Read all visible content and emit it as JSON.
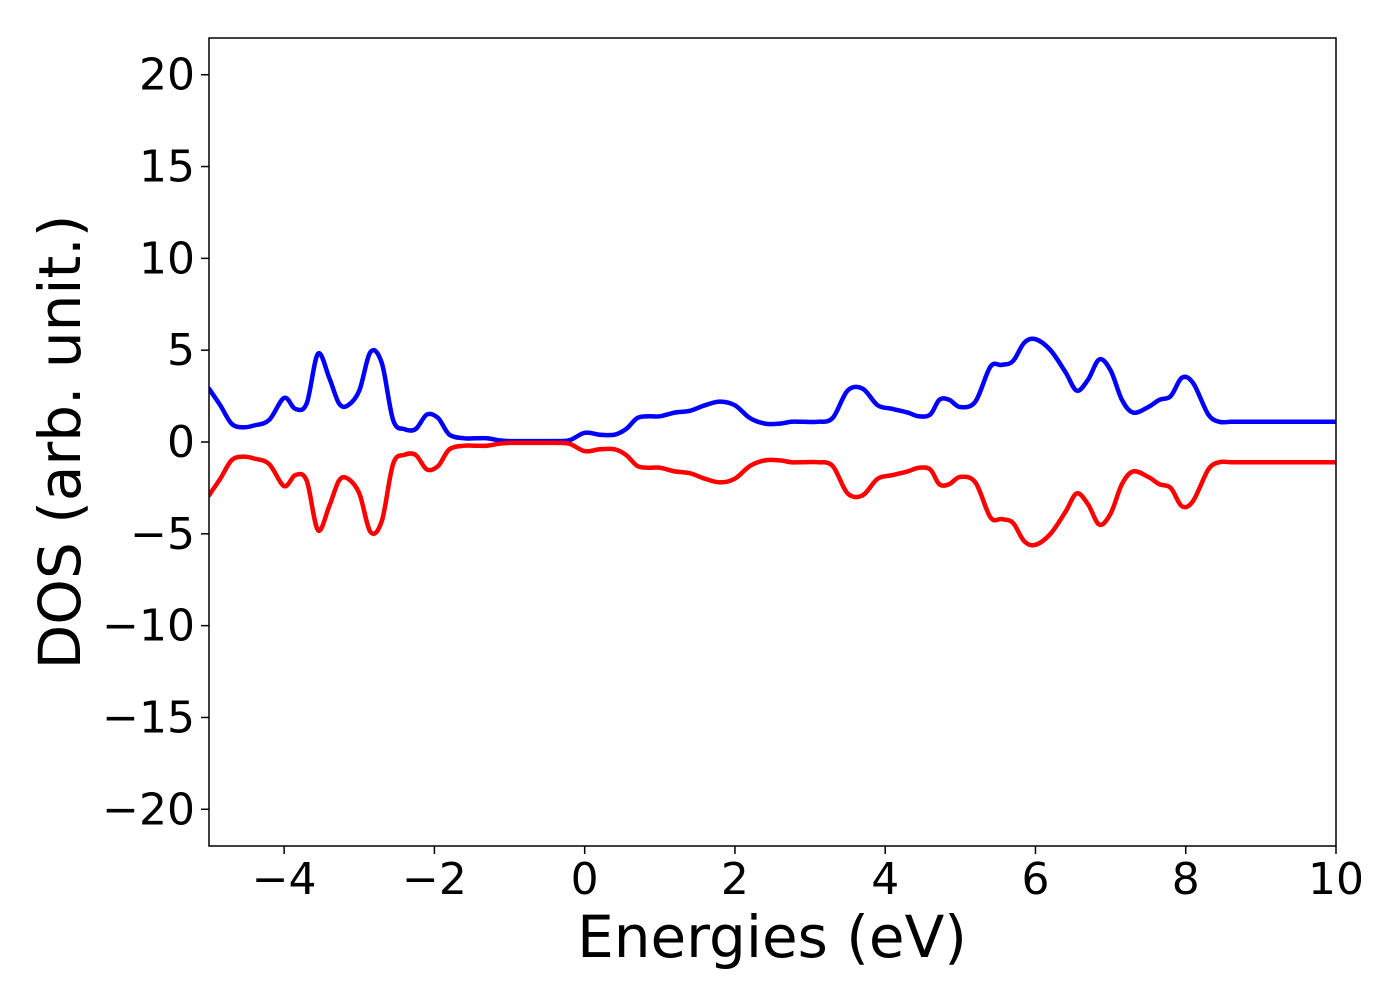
{
  "chart_data": {
    "type": "line",
    "title": "",
    "xlabel": "Energies (eV)",
    "ylabel": "DOS (arb. unit.)",
    "xlim": [
      -5,
      10
    ],
    "ylim": [
      -22,
      22
    ],
    "xticks": [
      -4,
      -2,
      0,
      2,
      4,
      6,
      8,
      10
    ],
    "yticks": [
      -20,
      -15,
      -10,
      -5,
      0,
      5,
      10,
      15,
      20
    ],
    "xtick_labels": [
      "−4",
      "−2",
      "0",
      "2",
      "4",
      "6",
      "8",
      "10"
    ],
    "ytick_labels": [
      "−20",
      "−15",
      "−10",
      "−5",
      "0",
      "5",
      "10",
      "15",
      "20"
    ],
    "grid": false,
    "legend": "none",
    "series": [
      {
        "color": "#0000ff",
        "x": [
          -5.0,
          -4.85,
          -4.7,
          -4.55,
          -4.4,
          -4.2,
          -4.0,
          -3.85,
          -3.7,
          -3.55,
          -3.4,
          -3.27,
          -3.15,
          -3.0,
          -2.85,
          -2.7,
          -2.55,
          -2.4,
          -2.25,
          -2.1,
          -1.95,
          -1.8,
          -1.6,
          -1.45,
          -1.3,
          -1.15,
          -1.0,
          -0.8,
          -0.6,
          -0.4,
          -0.2,
          0.0,
          0.2,
          0.4,
          0.55,
          0.7,
          0.85,
          1.0,
          1.2,
          1.4,
          1.6,
          1.8,
          2.0,
          2.2,
          2.4,
          2.6,
          2.75,
          2.9,
          3.1,
          3.3,
          3.5,
          3.7,
          3.9,
          4.1,
          4.3,
          4.45,
          4.6,
          4.72,
          4.85,
          5.0,
          5.2,
          5.4,
          5.55,
          5.7,
          5.85,
          6.0,
          6.2,
          6.4,
          6.55,
          6.7,
          6.85,
          7.0,
          7.15,
          7.3,
          7.5,
          7.65,
          7.8,
          7.95,
          8.1,
          8.3,
          8.45,
          8.6,
          8.75,
          8.95,
          9.15,
          9.35,
          9.58,
          9.75,
          9.9,
          10.0
        ],
        "y": [
          2.9,
          2.0,
          1.0,
          0.8,
          0.9,
          1.2,
          2.4,
          1.8,
          2.1,
          4.8,
          3.5,
          2.1,
          2.0,
          2.8,
          4.9,
          4.3,
          1.2,
          0.7,
          0.7,
          1.5,
          1.3,
          0.4,
          0.2,
          0.2,
          0.2,
          0.1,
          0.05,
          0.05,
          0.05,
          0.05,
          0.1,
          0.5,
          0.4,
          0.4,
          0.7,
          1.3,
          1.4,
          1.4,
          1.6,
          1.7,
          2.0,
          2.2,
          2.0,
          1.3,
          1.0,
          1.0,
          1.1,
          1.1,
          1.1,
          1.3,
          2.8,
          2.9,
          2.0,
          1.8,
          1.6,
          1.4,
          1.5,
          2.3,
          2.3,
          1.9,
          2.2,
          4.1,
          4.2,
          4.4,
          5.4,
          5.6,
          5.0,
          3.8,
          2.8,
          3.4,
          4.5,
          3.9,
          2.3,
          1.6,
          1.9,
          2.3,
          2.5,
          3.5,
          3.2,
          1.5,
          1.1,
          1.1,
          1.1,
          1.1,
          1.1,
          1.1,
          1.1,
          1.1,
          1.1,
          1.1
        ]
      },
      {
        "color": "#ff0000",
        "x": [
          -5.0,
          -4.85,
          -4.7,
          -4.55,
          -4.4,
          -4.2,
          -4.0,
          -3.85,
          -3.7,
          -3.55,
          -3.4,
          -3.27,
          -3.15,
          -3.0,
          -2.85,
          -2.7,
          -2.55,
          -2.4,
          -2.25,
          -2.1,
          -1.95,
          -1.8,
          -1.6,
          -1.45,
          -1.3,
          -1.15,
          -1.0,
          -0.8,
          -0.6,
          -0.4,
          -0.2,
          0.0,
          0.2,
          0.4,
          0.55,
          0.7,
          0.85,
          1.0,
          1.2,
          1.4,
          1.6,
          1.8,
          2.0,
          2.2,
          2.4,
          2.6,
          2.75,
          2.9,
          3.1,
          3.3,
          3.5,
          3.7,
          3.9,
          4.1,
          4.3,
          4.45,
          4.6,
          4.72,
          4.85,
          5.0,
          5.2,
          5.4,
          5.55,
          5.7,
          5.85,
          6.0,
          6.2,
          6.4,
          6.55,
          6.7,
          6.85,
          7.0,
          7.15,
          7.3,
          7.5,
          7.65,
          7.8,
          7.95,
          8.1,
          8.3,
          8.45,
          8.6,
          8.75,
          8.95,
          9.15,
          9.35,
          9.58,
          9.75,
          9.9,
          10.0
        ],
        "y": [
          -2.9,
          -2.0,
          -1.0,
          -0.8,
          -0.9,
          -1.2,
          -2.4,
          -1.8,
          -2.1,
          -4.8,
          -3.5,
          -2.1,
          -2.0,
          -2.8,
          -4.9,
          -4.3,
          -1.2,
          -0.7,
          -0.7,
          -1.5,
          -1.3,
          -0.4,
          -0.2,
          -0.2,
          -0.2,
          -0.1,
          -0.05,
          -0.05,
          -0.05,
          -0.05,
          -0.1,
          -0.5,
          -0.4,
          -0.4,
          -0.7,
          -1.3,
          -1.4,
          -1.4,
          -1.6,
          -1.7,
          -2.0,
          -2.2,
          -2.0,
          -1.3,
          -1.0,
          -1.0,
          -1.1,
          -1.1,
          -1.1,
          -1.3,
          -2.8,
          -2.9,
          -2.0,
          -1.8,
          -1.6,
          -1.4,
          -1.5,
          -2.3,
          -2.3,
          -1.9,
          -2.2,
          -4.1,
          -4.2,
          -4.4,
          -5.4,
          -5.6,
          -5.0,
          -3.8,
          -2.8,
          -3.4,
          -4.5,
          -3.9,
          -2.3,
          -1.6,
          -1.9,
          -2.3,
          -2.5,
          -3.5,
          -3.2,
          -1.5,
          -1.1,
          -1.1,
          -1.1,
          -1.1,
          -1.1,
          -1.1,
          -1.1,
          -1.1,
          -1.1,
          -1.1
        ]
      }
    ]
  }
}
